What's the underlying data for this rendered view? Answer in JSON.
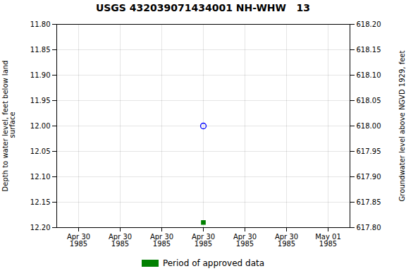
{
  "chart_data": {
    "type": "scatter",
    "title": "USGS 432039071434001 NH-WHW   13",
    "ylabel": "Depth to water level, feet below land\n surface",
    "y2label": "Groundwater level above NGVD 1929, feet",
    "categories": [
      "Apr 30\n1985",
      "Apr 30\n1985",
      "Apr 30\n1985",
      "Apr 30\n1985",
      "Apr 30\n1985",
      "Apr 30\n1985",
      "May 01\n1985"
    ],
    "series": [
      {
        "color": "#0000ff",
        "marker": "circle",
        "values": [
          null,
          null,
          null,
          12.0,
          null,
          null,
          null
        ]
      },
      {
        "name": "Period of approved data",
        "color": "#008000",
        "marker": "square",
        "values": [
          null,
          null,
          null,
          12.19,
          null,
          null,
          null
        ]
      }
    ],
    "ylim": [
      12.2,
      11.8
    ],
    "yticks": [
      {
        "value": 11.8,
        "label": "11.80"
      },
      {
        "value": 11.85,
        "label": "11.85"
      },
      {
        "value": 11.9,
        "label": "11.90"
      },
      {
        "value": 11.95,
        "label": "11.95"
      },
      {
        "value": 12.0,
        "label": "12.00"
      },
      {
        "value": 12.05,
        "label": "12.05"
      },
      {
        "value": 12.1,
        "label": "12.10"
      },
      {
        "value": 12.15,
        "label": "12.15"
      },
      {
        "value": 12.2,
        "label": "12.20"
      }
    ],
    "y2lim": [
      617.8,
      618.2
    ],
    "y2ticks": [
      {
        "value": 618.2,
        "label": "618.20"
      },
      {
        "value": 618.15,
        "label": "618.15"
      },
      {
        "value": 618.1,
        "label": "618.10"
      },
      {
        "value": 618.05,
        "label": "618.05"
      },
      {
        "value": 618.0,
        "label": "618.00"
      },
      {
        "value": 617.95,
        "label": "617.95"
      },
      {
        "value": 617.9,
        "label": "617.90"
      },
      {
        "value": 617.85,
        "label": "617.85"
      },
      {
        "value": 617.8,
        "label": "617.80"
      }
    ],
    "grid": true,
    "legend": "bottom"
  }
}
